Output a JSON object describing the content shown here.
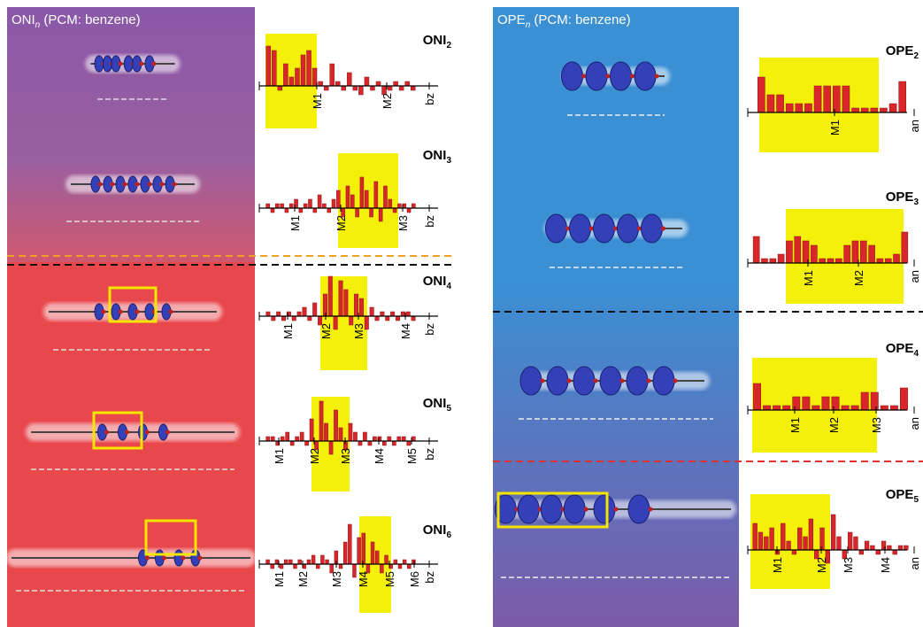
{
  "panels": [
    {
      "title": {
        "main": "ONI",
        "sub": "n",
        "rest": " (PCM: benzene)"
      },
      "charts": [
        {
          "name": "ONI",
          "sub": "2",
          "labels": [
            "M1",
            "M2",
            "bz"
          ],
          "values": [
            9,
            8,
            -1,
            5,
            2,
            4,
            7,
            8,
            4,
            1,
            -1,
            5,
            1,
            -1,
            3,
            -1,
            -2,
            2,
            -1,
            1,
            -2,
            -1,
            1,
            -1,
            1,
            -1
          ]
        },
        {
          "name": "ONI",
          "sub": "3",
          "labels": [
            "M1",
            "M2",
            "M3",
            "bz"
          ],
          "values": [
            1,
            -1,
            1,
            1,
            -1,
            1,
            2,
            -1,
            1,
            2,
            -1,
            3,
            1,
            -1,
            2,
            4,
            -2,
            5,
            3,
            -2,
            7,
            4,
            -2,
            6,
            -3,
            5,
            2,
            -1,
            1,
            1,
            -1,
            1
          ]
        },
        {
          "name": "ONI",
          "sub": "4",
          "labels": [
            "M1",
            "M2",
            "M3",
            "M4",
            "bz"
          ],
          "values": [
            1,
            -1,
            1,
            -1,
            1,
            -1,
            1,
            2,
            -1,
            3,
            -2,
            5,
            9,
            -3,
            8,
            6,
            -2,
            5,
            4,
            -3,
            2,
            -1,
            1,
            -1,
            1,
            -1,
            1,
            1,
            -1
          ]
        },
        {
          "name": "ONI",
          "sub": "5",
          "labels": [
            "M1",
            "M2",
            "M3",
            "M4",
            "M5",
            "bz"
          ],
          "values": [
            1,
            1,
            -1,
            1,
            2,
            -1,
            1,
            2,
            -1,
            5,
            -2,
            9,
            4,
            -3,
            7,
            3,
            -2,
            4,
            2,
            -1,
            2,
            -1,
            1,
            1,
            -1,
            1,
            -1,
            1,
            1,
            -1,
            1
          ]
        },
        {
          "name": "ONI",
          "sub": "6",
          "labels": [
            "M1",
            "M2",
            "M3",
            "M4",
            "M5",
            "M6",
            "bz"
          ],
          "values": [
            1,
            -1,
            1,
            -1,
            1,
            1,
            -1,
            1,
            -1,
            1,
            2,
            -1,
            2,
            1,
            -2,
            3,
            -1,
            5,
            9,
            -3,
            6,
            7,
            -2,
            5,
            3,
            -2,
            2,
            -1,
            1,
            -1,
            1,
            -1,
            1
          ]
        }
      ]
    },
    {
      "title": {
        "main": "OPE",
        "sub": "n",
        "rest": " (PCM: benzene)"
      },
      "charts": [
        {
          "name": "OPE",
          "sub": "2",
          "labels": [
            "M1",
            "an"
          ],
          "values": [
            8,
            4,
            4,
            2,
            2,
            2,
            6,
            6,
            6,
            6,
            1,
            1,
            1,
            1,
            2,
            7
          ]
        },
        {
          "name": "OPE",
          "sub": "3",
          "labels": [
            "M1",
            "M2",
            "an"
          ],
          "values": [
            6,
            1,
            1,
            2,
            5,
            6,
            5,
            4,
            1,
            1,
            1,
            4,
            5,
            5,
            4,
            1,
            1,
            2,
            7
          ]
        },
        {
          "name": "OPE",
          "sub": "4",
          "labels": [
            "M1",
            "M2",
            "M3",
            "an"
          ],
          "values": [
            6,
            1,
            1,
            1,
            3,
            3,
            1,
            3,
            3,
            1,
            1,
            4,
            4,
            1,
            1,
            5
          ]
        },
        {
          "name": "OPE",
          "sub": "5",
          "labels": [
            "M1",
            "M2",
            "M3",
            "M4",
            "an"
          ],
          "values": [
            6,
            4,
            3,
            5,
            -1,
            6,
            2,
            -1,
            5,
            3,
            7,
            -2,
            5,
            -3,
            8,
            3,
            -2,
            4,
            3,
            -1,
            2,
            1,
            -1,
            2,
            1,
            -1,
            1,
            1
          ]
        }
      ]
    }
  ]
}
